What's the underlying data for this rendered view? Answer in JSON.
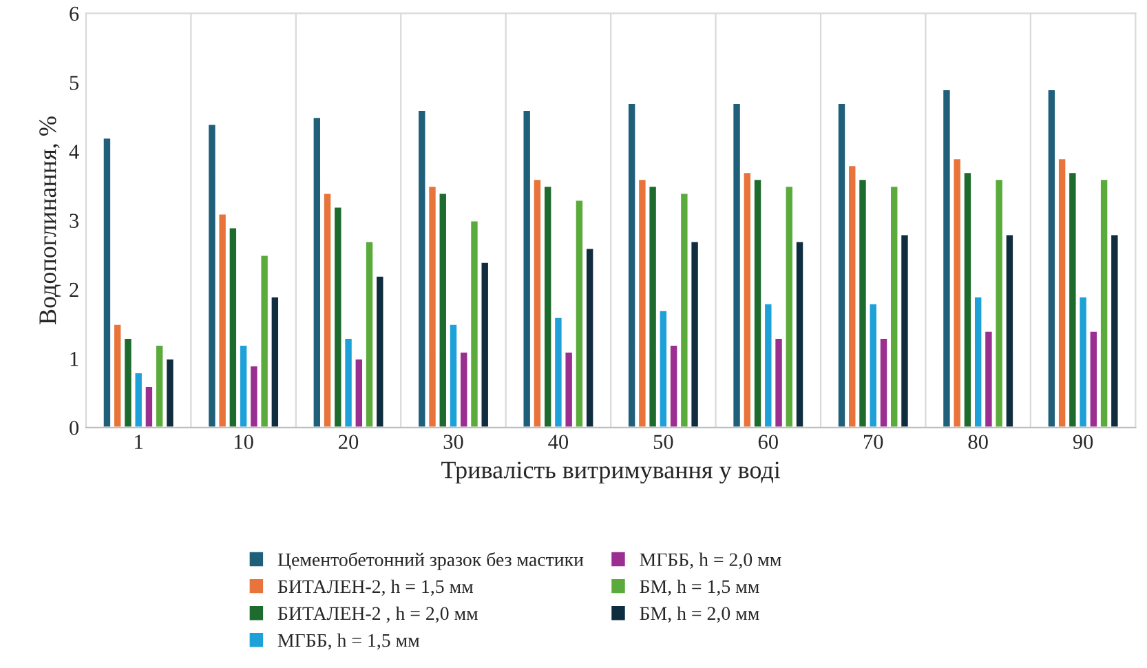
{
  "chart_data": {
    "type": "bar",
    "xlabel": "Тривалість витримування у воді",
    "ylabel": "Водопоглинання, %",
    "categories": [
      "1",
      "10",
      "20",
      "30",
      "40",
      "50",
      "60",
      "70",
      "80",
      "90"
    ],
    "ylim": [
      0,
      6
    ],
    "yticks": [
      0,
      1,
      2,
      3,
      4,
      5,
      6
    ],
    "grid": "x",
    "legend": "bottom",
    "series": [
      {
        "name": "Цементобетонний зразок без мастики",
        "color": "#1f5f7a",
        "values": [
          4.2,
          4.4,
          4.5,
          4.6,
          4.6,
          4.7,
          4.7,
          4.7,
          4.9,
          4.9
        ]
      },
      {
        "name": "БИТАЛЕН-2, h = 1,5 мм",
        "color": "#e8743b",
        "values": [
          1.5,
          3.1,
          3.4,
          3.5,
          3.6,
          3.6,
          3.7,
          3.8,
          3.9,
          3.9
        ]
      },
      {
        "name": "БИТАЛЕН-2 , h = 2,0 мм",
        "color": "#1e6b2e",
        "values": [
          1.3,
          2.9,
          3.2,
          3.4,
          3.5,
          3.5,
          3.6,
          3.6,
          3.7,
          3.7
        ]
      },
      {
        "name": "МГББ, h = 1,5 мм",
        "color": "#1ea0d8",
        "values": [
          0.8,
          1.2,
          1.3,
          1.5,
          1.6,
          1.7,
          1.8,
          1.8,
          1.9,
          1.9
        ]
      },
      {
        "name": "МГББ, h = 2,0 мм",
        "color": "#9b2f91",
        "values": [
          0.6,
          0.9,
          1.0,
          1.1,
          1.1,
          1.2,
          1.3,
          1.3,
          1.4,
          1.4
        ]
      },
      {
        "name": "БМ, h = 1,5 мм",
        "color": "#5aab3c",
        "values": [
          1.2,
          2.5,
          2.7,
          3.0,
          3.3,
          3.4,
          3.5,
          3.5,
          3.6,
          3.6
        ]
      },
      {
        "name": "БМ, h = 2,0 мм",
        "color": "#0f2d3f",
        "values": [
          1.0,
          1.9,
          2.2,
          2.4,
          2.6,
          2.7,
          2.7,
          2.8,
          2.8,
          2.8
        ]
      }
    ]
  }
}
